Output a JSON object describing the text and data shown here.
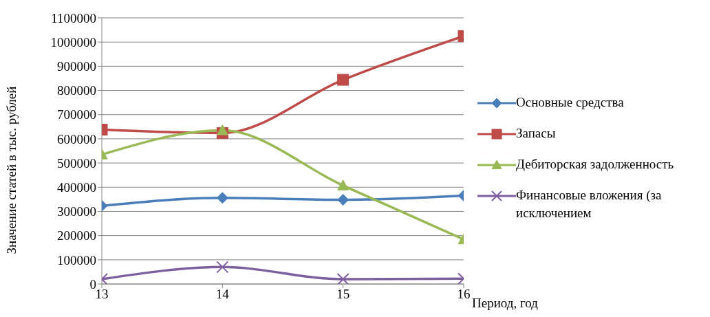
{
  "chart_data": {
    "type": "line",
    "xlabel": "Период, год",
    "ylabel": "Значение статей в тыс. рублей",
    "x": [
      13,
      14,
      15,
      16
    ],
    "xlim": [
      13,
      16
    ],
    "xticks": [
      13,
      14,
      15,
      16
    ],
    "ylim": [
      0,
      1100000
    ],
    "yticks": [
      0,
      100000,
      200000,
      300000,
      400000,
      500000,
      600000,
      700000,
      800000,
      900000,
      1000000,
      1100000
    ],
    "grid": "y",
    "legend": "right",
    "series": [
      {
        "name": "Основные средства",
        "color": "#4a7ebb",
        "marker": "diamond",
        "values": [
          323000,
          356000,
          348000,
          365000
        ]
      },
      {
        "name": "Запасы",
        "color": "#be4b48",
        "marker": "square",
        "values": [
          638000,
          624000,
          844000,
          1025000
        ]
      },
      {
        "name": "Дебиторская задолженность",
        "color": "#98b954",
        "marker": "triangle",
        "values": [
          535000,
          635000,
          407000,
          184000
        ]
      },
      {
        "name": "Финансовые вложения (за исключением",
        "color": "#7d5fa0",
        "marker": "cross",
        "values": [
          20000,
          70000,
          20000,
          22000
        ]
      }
    ]
  }
}
